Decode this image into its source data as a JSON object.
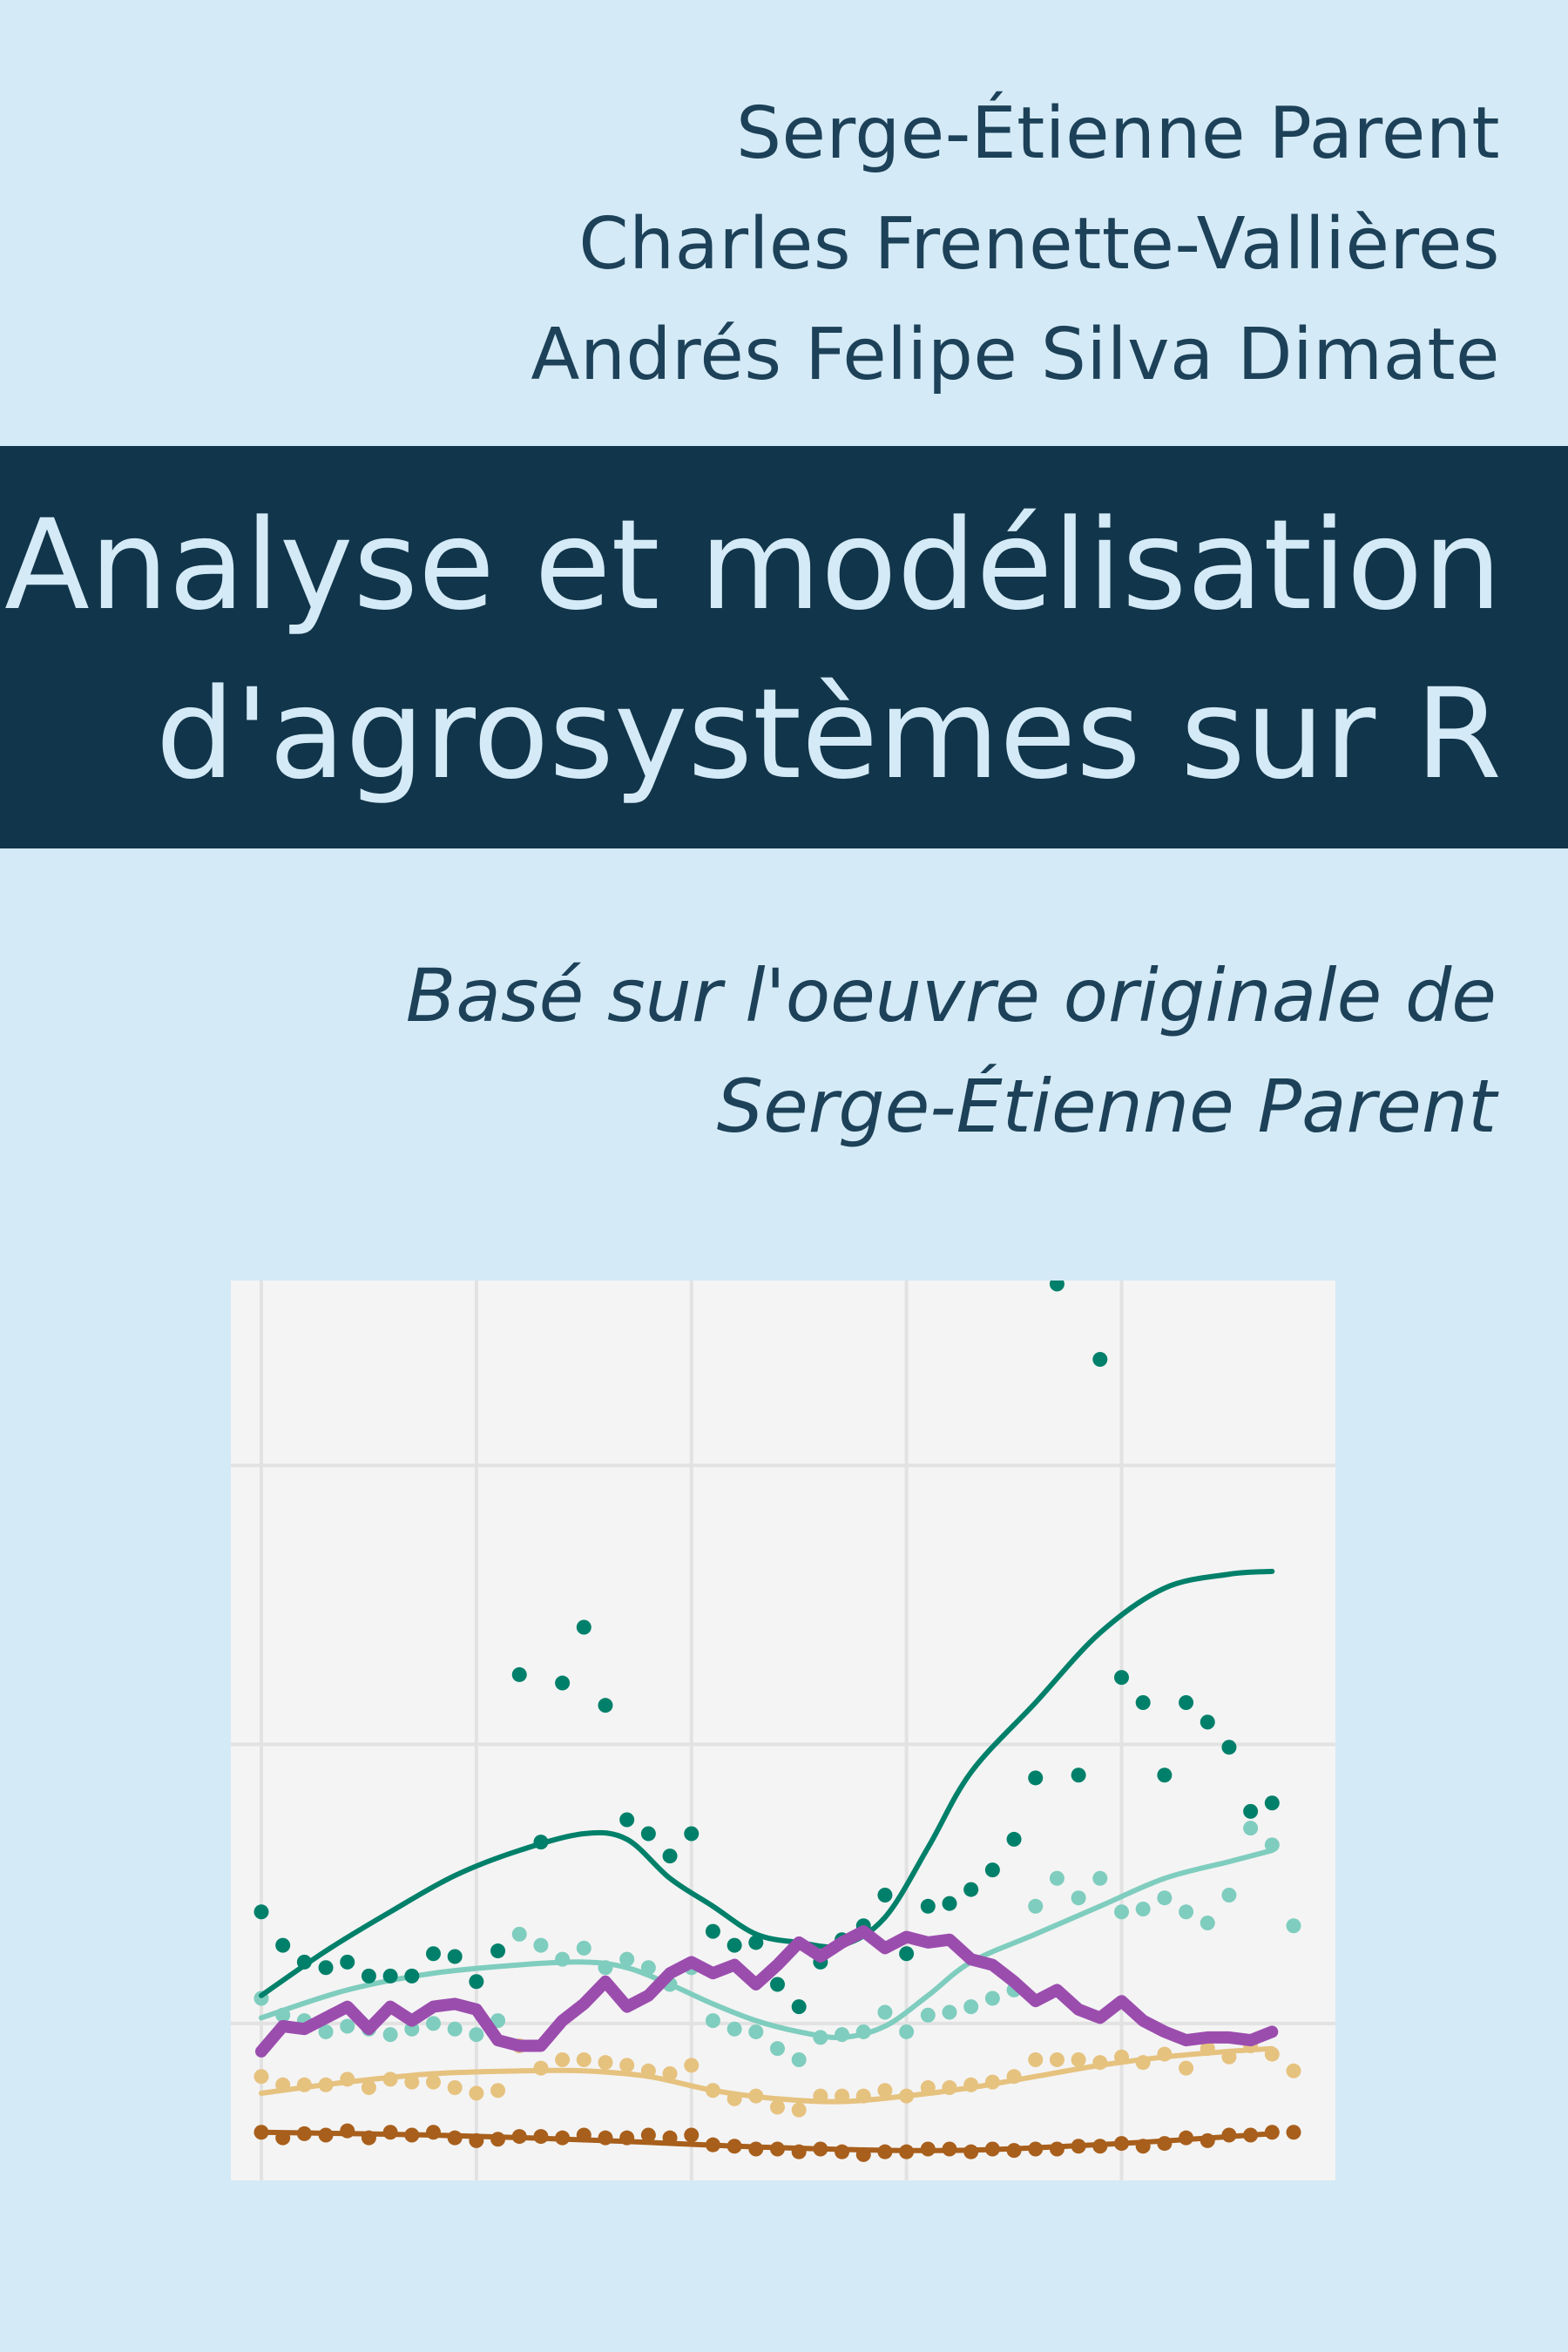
{
  "authors": [
    "Serge-Étienne Parent",
    "Charles Frenette-Vallières",
    "Andrés Felipe Silva Dimate"
  ],
  "title": {
    "line1": "Analyse et modélisation",
    "line2": "d'agrosystèmes sur R"
  },
  "subtitle": {
    "line1": "Basé sur l'oeuvre originale de ",
    "line2": "Serge-Étienne Parent"
  },
  "colors": {
    "background": "#d4eaf6",
    "band": "#11354a",
    "text": "#1c4158",
    "title_text": "#d4eaf6",
    "plot_background": "#f4f4f4",
    "series": [
      "#00806a",
      "#7fcdbe",
      "#e6c27f",
      "#a85f1c",
      "#9b4dae"
    ]
  },
  "chart_data": {
    "type": "scatter",
    "grid": true,
    "xlim": [
      0,
      48
    ],
    "ylim": [
      -1,
      30
    ],
    "series": [
      {
        "points": [
          [
            0,
            8
          ],
          [
            1,
            6.8
          ],
          [
            2,
            6.2
          ],
          [
            3,
            6
          ],
          [
            4,
            6.2
          ],
          [
            5,
            5.7
          ],
          [
            6,
            5.7
          ],
          [
            7,
            5.7
          ],
          [
            8,
            6.5
          ],
          [
            9,
            6.4
          ],
          [
            10,
            5.5
          ],
          [
            11,
            6.6
          ],
          [
            12,
            16.5
          ],
          [
            13,
            10.5
          ],
          [
            14,
            16.2
          ],
          [
            15,
            18.2
          ],
          [
            16,
            15.4
          ],
          [
            17,
            11.3
          ],
          [
            18,
            10.8
          ],
          [
            19,
            10
          ],
          [
            20,
            10.8
          ],
          [
            21,
            7.3
          ],
          [
            22,
            6.8
          ],
          [
            23,
            6.9
          ],
          [
            24,
            5.4
          ],
          [
            25,
            4.6
          ],
          [
            26,
            6.2
          ],
          [
            27,
            7
          ],
          [
            28,
            7.5
          ],
          [
            29,
            8.6
          ],
          [
            30,
            6.5
          ],
          [
            31,
            8.2
          ],
          [
            32,
            8.3
          ],
          [
            33,
            8.8
          ],
          [
            34,
            9.5
          ],
          [
            35,
            10.6
          ],
          [
            36,
            12.8
          ],
          [
            37,
            30.5
          ],
          [
            38,
            12.9
          ],
          [
            39,
            27.8
          ],
          [
            40,
            16.4
          ],
          [
            41,
            15.5
          ],
          [
            42,
            12.9
          ],
          [
            43,
            15.5
          ],
          [
            44,
            14.8
          ],
          [
            45,
            13.9
          ],
          [
            46,
            11.6
          ],
          [
            47,
            11.9
          ]
        ],
        "trend": [
          [
            0,
            5
          ],
          [
            3,
            6.6
          ],
          [
            6,
            8
          ],
          [
            9,
            9.3
          ],
          [
            12,
            10.2
          ],
          [
            15,
            10.8
          ],
          [
            17,
            10.6
          ],
          [
            19,
            9.2
          ],
          [
            21,
            8.2
          ],
          [
            23,
            7.2
          ],
          [
            25,
            6.9
          ],
          [
            27,
            6.8
          ],
          [
            29,
            7.8
          ],
          [
            31,
            10.3
          ],
          [
            33,
            13
          ],
          [
            36,
            15.5
          ],
          [
            39,
            18
          ],
          [
            42,
            19.6
          ],
          [
            45,
            20.1
          ],
          [
            47,
            20.2
          ]
        ]
      },
      {
        "points": [
          [
            0,
            4.9
          ],
          [
            1,
            4.3
          ],
          [
            2,
            4.1
          ],
          [
            3,
            3.7
          ],
          [
            4,
            3.9
          ],
          [
            5,
            3.8
          ],
          [
            6,
            3.6
          ],
          [
            7,
            3.8
          ],
          [
            8,
            4
          ],
          [
            9,
            3.8
          ],
          [
            10,
            3.6
          ],
          [
            11,
            4.1
          ],
          [
            12,
            7.2
          ],
          [
            13,
            6.8
          ],
          [
            14,
            6.3
          ],
          [
            15,
            6.7
          ],
          [
            16,
            6
          ],
          [
            17,
            6.3
          ],
          [
            18,
            6
          ],
          [
            19,
            5.4
          ],
          [
            20,
            6
          ],
          [
            21,
            4.1
          ],
          [
            22,
            3.8
          ],
          [
            23,
            3.7
          ],
          [
            24,
            3.1
          ],
          [
            25,
            2.7
          ],
          [
            26,
            3.5
          ],
          [
            27,
            3.6
          ],
          [
            28,
            3.7
          ],
          [
            29,
            4.4
          ],
          [
            30,
            3.7
          ],
          [
            31,
            4.3
          ],
          [
            32,
            4.4
          ],
          [
            33,
            4.6
          ],
          [
            34,
            4.9
          ],
          [
            35,
            5.2
          ],
          [
            36,
            8.2
          ],
          [
            37,
            9.2
          ],
          [
            38,
            8.5
          ],
          [
            39,
            9.2
          ],
          [
            40,
            8
          ],
          [
            41,
            8.1
          ],
          [
            42,
            8.5
          ],
          [
            43,
            8
          ],
          [
            44,
            7.6
          ],
          [
            45,
            8.6
          ],
          [
            46,
            11
          ],
          [
            47,
            10.4
          ],
          [
            48,
            7.5
          ]
        ],
        "trend": [
          [
            0,
            4.2
          ],
          [
            4,
            5.2
          ],
          [
            8,
            5.8
          ],
          [
            12,
            6.1
          ],
          [
            15,
            6.2
          ],
          [
            17,
            6
          ],
          [
            19,
            5.4
          ],
          [
            21,
            4.7
          ],
          [
            23,
            4.1
          ],
          [
            25,
            3.7
          ],
          [
            27,
            3.5
          ],
          [
            29,
            3.9
          ],
          [
            31,
            5
          ],
          [
            33,
            6.2
          ],
          [
            36,
            7.2
          ],
          [
            39,
            8.2
          ],
          [
            42,
            9.2
          ],
          [
            45,
            9.8
          ],
          [
            47,
            10.2
          ]
        ]
      },
      {
        "points": [
          [
            0,
            2.1
          ],
          [
            1,
            1.8
          ],
          [
            2,
            1.8
          ],
          [
            3,
            1.8
          ],
          [
            4,
            2
          ],
          [
            5,
            1.7
          ],
          [
            6,
            2
          ],
          [
            7,
            1.9
          ],
          [
            8,
            1.9
          ],
          [
            9,
            1.7
          ],
          [
            10,
            1.5
          ],
          [
            11,
            1.6
          ],
          [
            12,
            3.2
          ],
          [
            13,
            2.4
          ],
          [
            14,
            2.7
          ],
          [
            15,
            2.7
          ],
          [
            16,
            2.6
          ],
          [
            17,
            2.5
          ],
          [
            18,
            2.3
          ],
          [
            19,
            2.2
          ],
          [
            20,
            2.5
          ],
          [
            21,
            1.6
          ],
          [
            22,
            1.3
          ],
          [
            23,
            1.4
          ],
          [
            24,
            1
          ],
          [
            25,
            0.9
          ],
          [
            26,
            1.4
          ],
          [
            27,
            1.4
          ],
          [
            28,
            1.4
          ],
          [
            29,
            1.6
          ],
          [
            30,
            1.4
          ],
          [
            31,
            1.7
          ],
          [
            32,
            1.7
          ],
          [
            33,
            1.8
          ],
          [
            34,
            1.9
          ],
          [
            35,
            2.1
          ],
          [
            36,
            2.7
          ],
          [
            37,
            2.7
          ],
          [
            38,
            2.7
          ],
          [
            39,
            2.6
          ],
          [
            40,
            2.8
          ],
          [
            41,
            2.6
          ],
          [
            42,
            2.9
          ],
          [
            43,
            2.4
          ],
          [
            44,
            3.1
          ],
          [
            45,
            2.8
          ],
          [
            46,
            3.2
          ],
          [
            47,
            2.9
          ],
          [
            48,
            2.3
          ]
        ],
        "trend": [
          [
            0,
            1.5
          ],
          [
            4,
            1.9
          ],
          [
            8,
            2.2
          ],
          [
            12,
            2.3
          ],
          [
            15,
            2.3
          ],
          [
            18,
            2.1
          ],
          [
            21,
            1.6
          ],
          [
            24,
            1.3
          ],
          [
            27,
            1.2
          ],
          [
            30,
            1.4
          ],
          [
            33,
            1.7
          ],
          [
            36,
            2.1
          ],
          [
            39,
            2.5
          ],
          [
            42,
            2.8
          ],
          [
            45,
            3
          ],
          [
            47,
            3.1
          ]
        ]
      },
      {
        "points": [
          [
            0,
            0.1
          ],
          [
            1,
            -0.1
          ],
          [
            2,
            0.05
          ],
          [
            3,
            0
          ],
          [
            4,
            0.15
          ],
          [
            5,
            -0.1
          ],
          [
            6,
            0.1
          ],
          [
            7,
            0
          ],
          [
            8,
            0.1
          ],
          [
            9,
            -0.1
          ],
          [
            10,
            -0.2
          ],
          [
            11,
            -0.15
          ],
          [
            12,
            -0.05
          ],
          [
            13,
            -0.05
          ],
          [
            14,
            -0.1
          ],
          [
            15,
            0
          ],
          [
            16,
            -0.1
          ],
          [
            17,
            -0.1
          ],
          [
            18,
            0
          ],
          [
            19,
            -0.1
          ],
          [
            20,
            0
          ],
          [
            21,
            -0.35
          ],
          [
            22,
            -0.4
          ],
          [
            23,
            -0.5
          ],
          [
            24,
            -0.5
          ],
          [
            25,
            -0.6
          ],
          [
            26,
            -0.5
          ],
          [
            27,
            -0.6
          ],
          [
            28,
            -0.7
          ],
          [
            29,
            -0.6
          ],
          [
            30,
            -0.6
          ],
          [
            31,
            -0.5
          ],
          [
            32,
            -0.5
          ],
          [
            33,
            -0.6
          ],
          [
            34,
            -0.5
          ],
          [
            35,
            -0.55
          ],
          [
            36,
            -0.5
          ],
          [
            37,
            -0.5
          ],
          [
            38,
            -0.4
          ],
          [
            39,
            -0.4
          ],
          [
            40,
            -0.3
          ],
          [
            41,
            -0.4
          ],
          [
            42,
            -0.3
          ],
          [
            43,
            -0.1
          ],
          [
            44,
            -0.2
          ],
          [
            45,
            0
          ],
          [
            46,
            0
          ],
          [
            47,
            0.1
          ],
          [
            48,
            0.1
          ]
        ],
        "trend": [
          [
            0,
            0.1
          ],
          [
            8,
            0
          ],
          [
            16,
            -0.2
          ],
          [
            24,
            -0.45
          ],
          [
            32,
            -0.55
          ],
          [
            40,
            -0.3
          ],
          [
            47,
            0.05
          ]
        ]
      },
      {
        "line": [
          [
            0,
            3
          ],
          [
            1,
            3.9
          ],
          [
            2,
            3.8
          ],
          [
            3,
            4.2
          ],
          [
            4,
            4.6
          ],
          [
            5,
            3.8
          ],
          [
            6,
            4.6
          ],
          [
            7,
            4.1
          ],
          [
            8,
            4.6
          ],
          [
            9,
            4.7
          ],
          [
            10,
            4.5
          ],
          [
            11,
            3.4
          ],
          [
            12,
            3.2
          ],
          [
            13,
            3.2
          ],
          [
            14,
            4.1
          ],
          [
            15,
            4.7
          ],
          [
            16,
            5.5
          ],
          [
            17,
            4.6
          ],
          [
            18,
            5
          ],
          [
            19,
            5.8
          ],
          [
            20,
            6.2
          ],
          [
            21,
            5.8
          ],
          [
            22,
            6.1
          ],
          [
            23,
            5.4
          ],
          [
            24,
            6.1
          ],
          [
            25,
            6.9
          ],
          [
            26,
            6.4
          ],
          [
            27,
            6.9
          ],
          [
            28,
            7.3
          ],
          [
            29,
            6.7
          ],
          [
            30,
            7.1
          ],
          [
            31,
            6.9
          ],
          [
            32,
            7
          ],
          [
            33,
            6.3
          ],
          [
            34,
            6.1
          ],
          [
            35,
            5.5
          ],
          [
            36,
            4.8
          ],
          [
            37,
            5.2
          ],
          [
            38,
            4.5
          ],
          [
            39,
            4.2
          ],
          [
            40,
            4.8
          ],
          [
            41,
            4.1
          ],
          [
            42,
            3.7
          ],
          [
            43,
            3.4
          ],
          [
            44,
            3.5
          ],
          [
            45,
            3.5
          ],
          [
            46,
            3.4
          ],
          [
            47,
            3.7
          ]
        ]
      }
    ]
  }
}
